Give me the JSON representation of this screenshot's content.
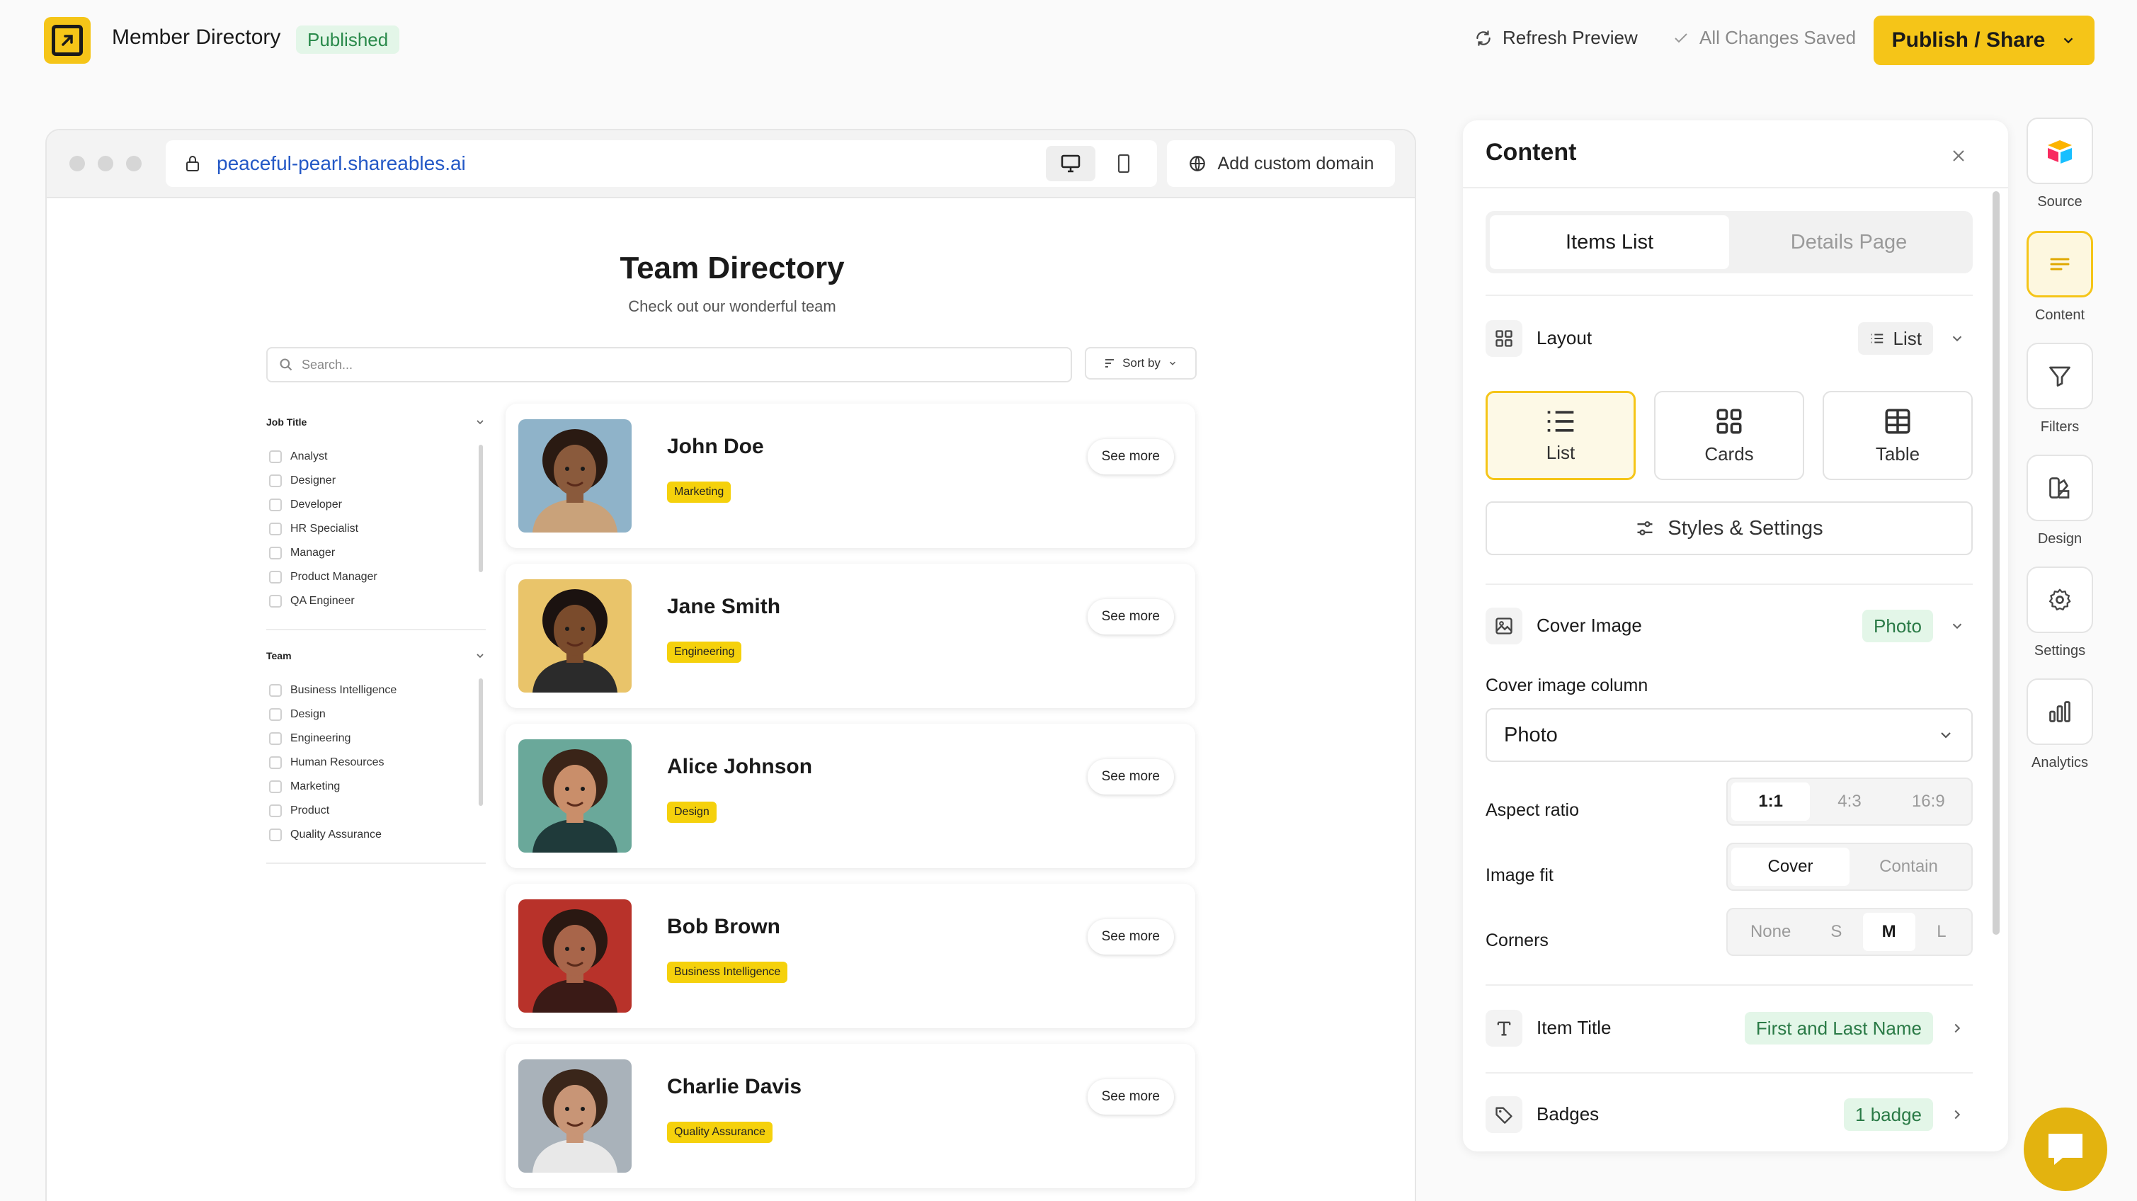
{
  "header": {
    "app_title": "Member Directory",
    "status_badge": "Published",
    "refresh_label": "Refresh Preview",
    "saved_label": "All Changes Saved",
    "publish_label": "Publish / Share"
  },
  "browser": {
    "url": "peaceful-pearl.shareables.ai",
    "custom_domain_label": "Add custom domain"
  },
  "preview": {
    "title": "Team Directory",
    "subtitle": "Check out our wonderful team",
    "search_placeholder": "Search...",
    "sort_label": "Sort by",
    "filters": [
      {
        "title": "Job Title",
        "options": [
          "Analyst",
          "Designer",
          "Developer",
          "HR Specialist",
          "Manager",
          "Product Manager",
          "QA Engineer"
        ]
      },
      {
        "title": "Team",
        "options": [
          "Business Intelligence",
          "Design",
          "Engineering",
          "Human Resources",
          "Marketing",
          "Product",
          "Quality Assurance"
        ]
      }
    ],
    "see_more_label": "See more",
    "members": [
      {
        "name": "John Doe",
        "badge": "Marketing",
        "bg": "#8fb3c9",
        "skin": "#8a5a3c",
        "hair": "#2a1a12",
        "shirt": "#c9a27a"
      },
      {
        "name": "Jane Smith",
        "badge": "Engineering",
        "bg": "#e9c46a",
        "skin": "#7a4b2c",
        "hair": "#1b1210",
        "shirt": "#2b2b2b"
      },
      {
        "name": "Alice Johnson",
        "badge": "Design",
        "bg": "#6aa89a",
        "skin": "#c98e6a",
        "hair": "#3a2418",
        "shirt": "#1f3a3a"
      },
      {
        "name": "Bob Brown",
        "badge": "Business Intelligence",
        "bg": "#b8322a",
        "skin": "#a8654a",
        "hair": "#2a1812",
        "shirt": "#3a1a16"
      },
      {
        "name": "Charlie Davis",
        "badge": "Quality Assurance",
        "bg": "#a9b2ba",
        "skin": "#c89576",
        "hair": "#3a261a",
        "shirt": "#e8e8e8"
      }
    ]
  },
  "panel": {
    "title": "Content",
    "tabs": [
      "Items List",
      "Details Page"
    ],
    "layout": {
      "label": "Layout",
      "value": "List",
      "options": [
        "List",
        "Cards",
        "Table"
      ]
    },
    "styles_label": "Styles & Settings",
    "cover_image": {
      "label": "Cover Image",
      "value": "Photo",
      "column_label": "Cover image column",
      "column_value": "Photo",
      "aspect_label": "Aspect ratio",
      "aspect_options": [
        "1:1",
        "4:3",
        "16:9"
      ],
      "fit_label": "Image fit",
      "fit_options": [
        "Cover",
        "Contain"
      ],
      "corners_label": "Corners",
      "corner_options": [
        "None",
        "S",
        "M",
        "L"
      ]
    },
    "item_title": {
      "label": "Item Title",
      "value": "First and Last Name"
    },
    "badges": {
      "label": "Badges",
      "value": "1 badge"
    }
  },
  "rail": [
    "Source",
    "Content",
    "Filters",
    "Design",
    "Settings",
    "Analytics"
  ],
  "colors": {
    "accent": "#f5c518",
    "badge": "#f5d10c",
    "success_bg": "#e3f6e8",
    "success_text": "#2a8a4b",
    "link": "#2458c6"
  }
}
